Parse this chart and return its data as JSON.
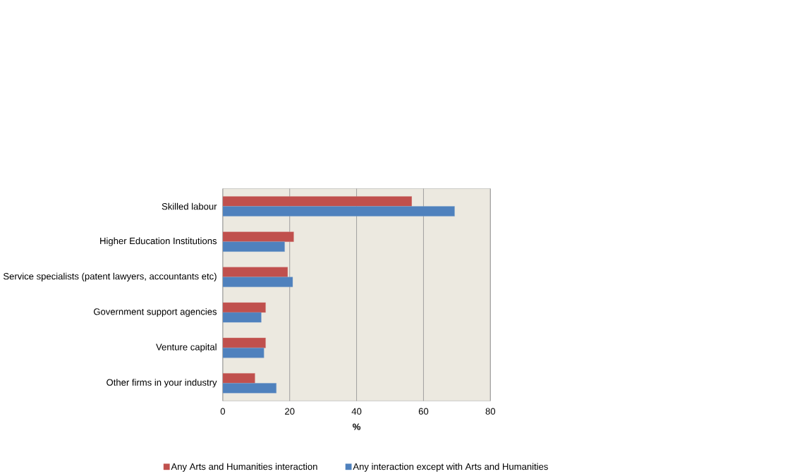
{
  "chart_data": {
    "type": "bar",
    "orientation": "horizontal",
    "xlabel": "%",
    "categories": [
      "Skilled labour",
      "Higher Education Institutions",
      "Service specialists (patent lawyers, accountants etc)",
      "Government support agencies",
      "Venture capital",
      "Other firms in your industry"
    ],
    "series": [
      {
        "name": "Any Arts and Humanities interaction",
        "color": "#c0504d",
        "values": [
          56.5,
          21.2,
          19.4,
          12.8,
          12.8,
          9.6
        ]
      },
      {
        "name": "Any interaction except with Arts and Humanities",
        "color": "#4f81bd",
        "values": [
          69.3,
          18.5,
          20.9,
          11.5,
          12.3,
          16.0
        ]
      }
    ],
    "xlim": [
      0,
      80
    ],
    "xticks": [
      0,
      20,
      40,
      60,
      80
    ],
    "grid": "x",
    "legend": "bottom"
  }
}
